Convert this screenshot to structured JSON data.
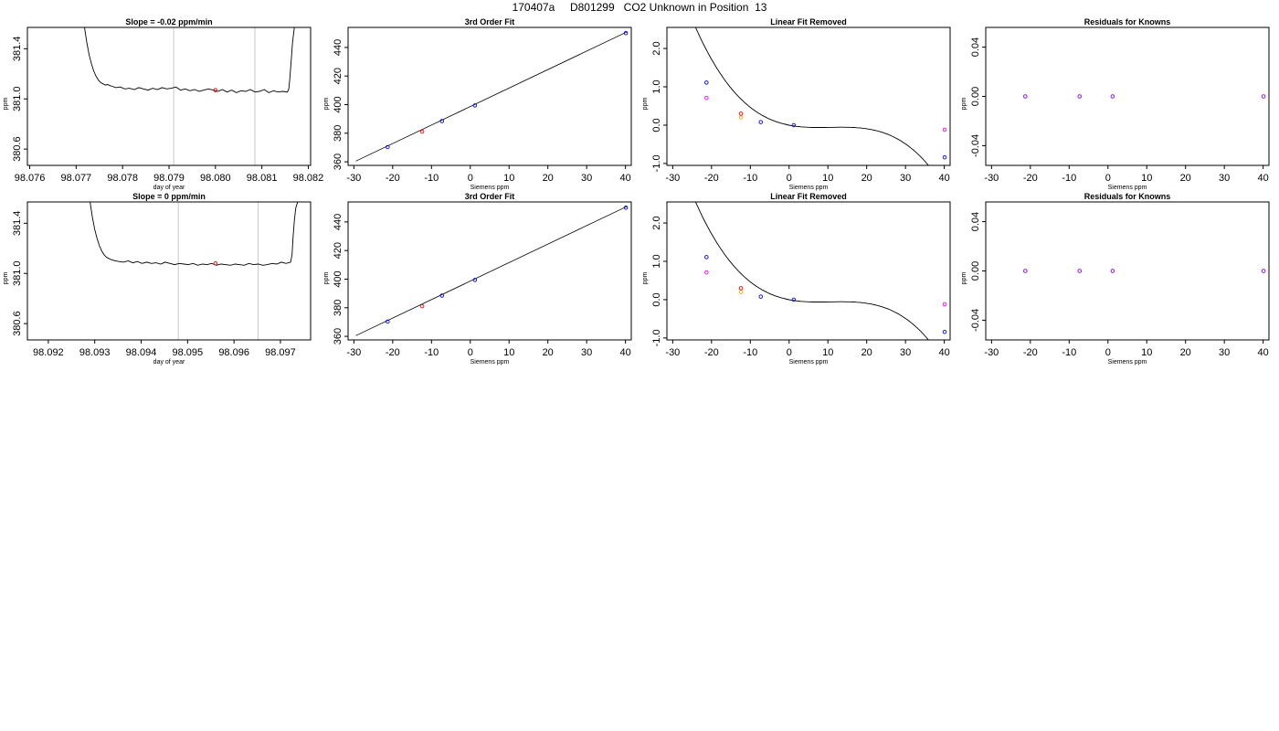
{
  "title": "170407a     D801299   CO2 Unknown in Position  13",
  "colors": {
    "trace": "#000000",
    "vline": "#c8c8c8",
    "unknown": "#ff0000",
    "known": "#0000ff",
    "measured": "#ff00ff",
    "alt": "#ffa500",
    "residual": "#7f00ff"
  },
  "chart_data": [
    {
      "type": "line",
      "title": "Slope =  -0.02  ppm/min",
      "xlabel": "day of year",
      "ylabel": "ppm",
      "xlim": [
        98.07595,
        98.08205
      ],
      "ylim": [
        380.47,
        381.57
      ],
      "xticks": [
        98.076,
        98.077,
        98.078,
        98.079,
        98.08,
        98.081,
        98.082
      ],
      "xtick_labels": [
        "98.076",
        "98.077",
        "98.078",
        "98.079",
        "98.080",
        "98.081",
        "98.082"
      ],
      "yticks": [
        380.6,
        381.0,
        381.4
      ],
      "ytick_labels": [
        "380.6",
        "381.0",
        "381.4"
      ],
      "vlines": [
        98.0791,
        98.08085
      ],
      "trace": {
        "x": [
          98.07718,
          98.07723,
          98.07728,
          98.07733,
          98.07738,
          98.07743,
          98.07748,
          98.07753,
          98.07758,
          98.07763,
          98.07768,
          98.07773,
          98.07778,
          98.07785,
          98.07795,
          98.07805,
          98.07815,
          98.07825,
          98.07835,
          98.07845,
          98.07855,
          98.07865,
          98.07875,
          98.07885,
          98.07895,
          98.07905,
          98.07915,
          98.07925,
          98.07935,
          98.07945,
          98.07955,
          98.07965,
          98.07975,
          98.07985,
          98.07995,
          98.08005,
          98.08015,
          98.08025,
          98.08035,
          98.08045,
          98.08055,
          98.08065,
          98.08075,
          98.08085,
          98.08095,
          98.08105,
          98.08115,
          98.08125,
          98.08135,
          98.08145,
          98.08155,
          98.08158,
          98.0816,
          98.08163,
          98.08166,
          98.0817
        ],
        "y": [
          381.57,
          381.45,
          381.35,
          381.28,
          381.22,
          381.18,
          381.15,
          381.13,
          381.12,
          381.11,
          381.115,
          381.105,
          381.1,
          381.09,
          381.095,
          381.08,
          381.085,
          381.075,
          381.09,
          381.08,
          381.07,
          381.085,
          381.075,
          381.09,
          381.08,
          381.085,
          381.095,
          381.07,
          381.08,
          381.065,
          381.075,
          381.06,
          381.07,
          381.08,
          381.07,
          381.06,
          381.075,
          381.055,
          381.07,
          381.05,
          381.065,
          381.06,
          381.075,
          381.055,
          381.06,
          381.075,
          381.05,
          381.065,
          381.055,
          381.06,
          381.055,
          381.08,
          381.15,
          381.3,
          381.45,
          381.57
        ]
      },
      "marker": {
        "x": 98.08,
        "y": 381.07
      }
    },
    {
      "type": "scatter",
      "title": "3rd Order Fit",
      "xlabel": "Siemens ppm",
      "ylabel": "ppm",
      "xlim": [
        -31.5,
        41.5
      ],
      "ylim": [
        357.5,
        454.0
      ],
      "xticks": [
        -30,
        -20,
        -10,
        0,
        10,
        20,
        30,
        40
      ],
      "xtick_labels": [
        "-30",
        "-20",
        "-10",
        "0",
        "10",
        "20",
        "30",
        "40"
      ],
      "yticks": [
        360,
        380,
        400,
        420,
        440
      ],
      "ytick_labels": [
        "360",
        "380",
        "400",
        "420",
        "440"
      ],
      "line": {
        "x": [
          -29.5,
          40.5
        ],
        "y": [
          360.5,
          451.0
        ]
      },
      "knowns": {
        "x": [
          -21.3,
          -7.3,
          1.2,
          40.1
        ],
        "y": [
          370.3,
          388.5,
          399.4,
          450.0
        ]
      },
      "unknown": {
        "x": [
          -12.4
        ],
        "y": [
          381.1
        ]
      }
    },
    {
      "type": "scatter",
      "title": "Linear Fit Removed",
      "xlabel": "Siemens ppm",
      "ylabel": "ppm",
      "xlim": [
        -31.5,
        41.5
      ],
      "ylim": [
        -1.05,
        2.55
      ],
      "xticks": [
        -30,
        -20,
        -10,
        0,
        10,
        20,
        30,
        40
      ],
      "xtick_labels": [
        "-30",
        "-20",
        "-10",
        "0",
        "10",
        "20",
        "30",
        "40"
      ],
      "yticks": [
        -1.0,
        0.0,
        1.0,
        2.0
      ],
      "ytick_labels": [
        "-1.0",
        "0.0",
        "1.0",
        "2.0"
      ],
      "curve": {
        "c0": 0.0,
        "c1": -0.0198,
        "c2": 0.00203,
        "c3": -6.38e-05,
        "xmin": -29.5,
        "xmax": 40.5
      },
      "knowns": {
        "x": [
          -21.3,
          -7.3,
          1.2,
          40.1
        ],
        "y": [
          1.11,
          0.08,
          0.0,
          -0.84
        ]
      },
      "measured": {
        "x": [
          -21.3,
          40.1
        ],
        "y": [
          0.71,
          -0.12
        ]
      },
      "alt": {
        "x": [
          -12.4
        ],
        "y": [
          0.2
        ]
      },
      "unknown": {
        "x": [
          -12.4
        ],
        "y": [
          0.3
        ]
      }
    },
    {
      "type": "scatter",
      "title": "Residuals for Knowns",
      "xlabel": "Siemens ppm",
      "ylabel": "ppm",
      "xlim": [
        -31.5,
        41.5
      ],
      "ylim": [
        -0.056,
        0.056
      ],
      "xticks": [
        -30,
        -20,
        -10,
        0,
        10,
        20,
        30,
        40
      ],
      "xtick_labels": [
        "-30",
        "-20",
        "-10",
        "0",
        "10",
        "20",
        "30",
        "40"
      ],
      "yticks": [
        -0.04,
        0.0,
        0.04
      ],
      "ytick_labels": [
        "-0.04",
        "0.00",
        "0.04"
      ],
      "points": {
        "x": [
          -21.3,
          -7.3,
          1.2,
          40.1
        ],
        "y": [
          0.0,
          0.0,
          0.0,
          0.0
        ]
      }
    },
    {
      "type": "line",
      "title": "Slope =  0  ppm/min",
      "xlabel": "day of year",
      "ylabel": "ppm",
      "xlim": [
        98.09155,
        98.09765
      ],
      "ylim": [
        380.47,
        381.57
      ],
      "xticks": [
        98.092,
        98.093,
        98.094,
        98.095,
        98.096,
        98.097
      ],
      "xtick_labels": [
        "98.092",
        "98.093",
        "98.094",
        "98.095",
        "98.096",
        "98.097"
      ],
      "yticks": [
        380.6,
        381.0,
        381.4
      ],
      "ytick_labels": [
        "380.6",
        "381.0",
        "381.4"
      ],
      "vlines": [
        98.0948,
        98.09652
      ],
      "trace": {
        "x": [
          98.0929,
          98.09295,
          98.093,
          98.09305,
          98.0931,
          98.09315,
          98.0932,
          98.09325,
          98.0933,
          98.09335,
          98.0934,
          98.09345,
          98.09352,
          98.09362,
          98.09372,
          98.09382,
          98.09392,
          98.09402,
          98.09412,
          98.09422,
          98.09432,
          98.09442,
          98.09452,
          98.09462,
          98.09472,
          98.09482,
          98.09492,
          98.09502,
          98.09512,
          98.09522,
          98.09532,
          98.09542,
          98.09552,
          98.09562,
          98.09572,
          98.09582,
          98.09592,
          98.09602,
          98.09612,
          98.09622,
          98.09632,
          98.09642,
          98.09652,
          98.09662,
          98.09672,
          98.09682,
          98.09692,
          98.09702,
          98.09712,
          98.09722,
          98.09725,
          98.09727,
          98.0973,
          98.09733,
          98.09737
        ],
        "y": [
          381.57,
          381.45,
          381.35,
          381.28,
          381.22,
          381.18,
          381.15,
          381.13,
          381.12,
          381.11,
          381.105,
          381.1,
          381.095,
          381.09,
          381.1,
          381.085,
          381.095,
          381.08,
          381.09,
          381.08,
          381.085,
          381.075,
          381.09,
          381.08,
          381.07,
          381.08,
          381.075,
          381.07,
          381.08,
          381.065,
          381.075,
          381.07,
          381.08,
          381.065,
          381.075,
          381.07,
          381.065,
          381.075,
          381.07,
          381.065,
          381.08,
          381.07,
          381.075,
          381.065,
          381.07,
          381.08,
          381.075,
          381.09,
          381.08,
          381.09,
          381.15,
          381.28,
          381.42,
          381.52,
          381.57
        ]
      },
      "marker": {
        "x": 98.0956,
        "y": 381.08
      }
    },
    {
      "type": "scatter",
      "title": "3rd Order Fit",
      "xlabel": "Siemens ppm",
      "ylabel": "ppm",
      "xlim": [
        -31.5,
        41.5
      ],
      "ylim": [
        357.5,
        454.0
      ],
      "xticks": [
        -30,
        -20,
        -10,
        0,
        10,
        20,
        30,
        40
      ],
      "xtick_labels": [
        "-30",
        "-20",
        "-10",
        "0",
        "10",
        "20",
        "30",
        "40"
      ],
      "yticks": [
        360,
        380,
        400,
        420,
        440
      ],
      "ytick_labels": [
        "360",
        "380",
        "400",
        "420",
        "440"
      ],
      "line": {
        "x": [
          -29.5,
          40.5
        ],
        "y": [
          360.5,
          451.0
        ]
      },
      "knowns": {
        "x": [
          -21.3,
          -7.3,
          1.2,
          40.1
        ],
        "y": [
          370.3,
          388.5,
          399.4,
          450.0
        ]
      },
      "unknown": {
        "x": [
          -12.4
        ],
        "y": [
          381.1
        ]
      }
    },
    {
      "type": "scatter",
      "title": "Linear Fit Removed",
      "xlabel": "Siemens ppm",
      "ylabel": "ppm",
      "xlim": [
        -31.5,
        41.5
      ],
      "ylim": [
        -1.05,
        2.55
      ],
      "xticks": [
        -30,
        -20,
        -10,
        0,
        10,
        20,
        30,
        40
      ],
      "xtick_labels": [
        "-30",
        "-20",
        "-10",
        "0",
        "10",
        "20",
        "30",
        "40"
      ],
      "yticks": [
        -1.0,
        0.0,
        1.0,
        2.0
      ],
      "ytick_labels": [
        "-1.0",
        "0.0",
        "1.0",
        "2.0"
      ],
      "curve": {
        "c0": 0.0,
        "c1": -0.0198,
        "c2": 0.00203,
        "c3": -6.38e-05,
        "xmin": -29.5,
        "xmax": 40.5
      },
      "knowns": {
        "x": [
          -21.3,
          -7.3,
          1.2,
          40.1
        ],
        "y": [
          1.11,
          0.08,
          0.0,
          -0.84
        ]
      },
      "measured": {
        "x": [
          -21.3,
          40.1
        ],
        "y": [
          0.71,
          -0.12
        ]
      },
      "alt": {
        "x": [
          -12.4
        ],
        "y": [
          0.2
        ]
      },
      "unknown": {
        "x": [
          -12.4
        ],
        "y": [
          0.3
        ]
      }
    },
    {
      "type": "scatter",
      "title": "Residuals for Knowns",
      "xlabel": "Siemens ppm",
      "ylabel": "ppm",
      "xlim": [
        -31.5,
        41.5
      ],
      "ylim": [
        -0.056,
        0.056
      ],
      "xticks": [
        -30,
        -20,
        -10,
        0,
        10,
        20,
        30,
        40
      ],
      "xtick_labels": [
        "-30",
        "-20",
        "-10",
        "0",
        "10",
        "20",
        "30",
        "40"
      ],
      "yticks": [
        -0.04,
        0.0,
        0.04
      ],
      "ytick_labels": [
        "-0.04",
        "0.00",
        "0.04"
      ],
      "points": {
        "x": [
          -21.3,
          -7.3,
          1.2,
          40.1
        ],
        "y": [
          0.0,
          0.0,
          0.0,
          0.0
        ]
      }
    }
  ]
}
